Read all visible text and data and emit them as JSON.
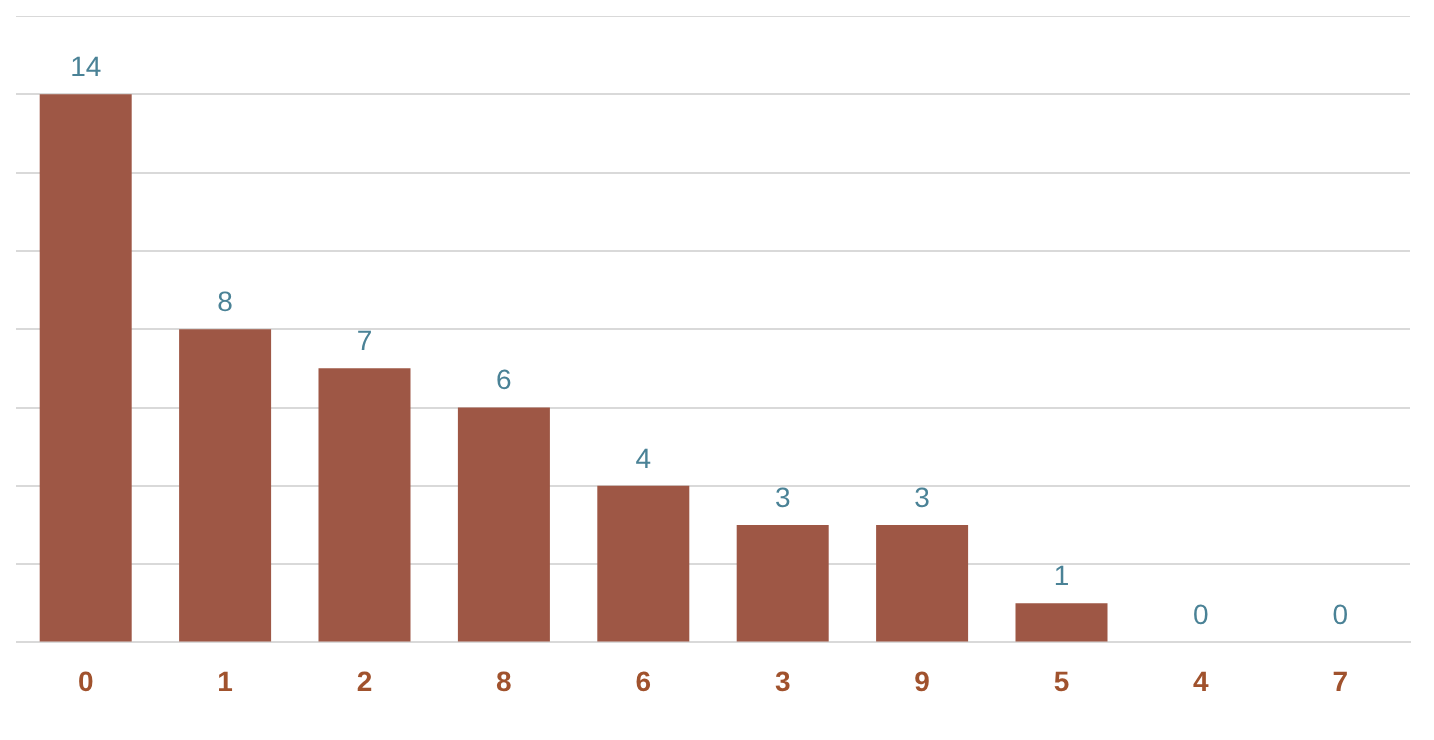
{
  "chart_data": {
    "type": "bar",
    "categories": [
      "0",
      "1",
      "2",
      "8",
      "6",
      "3",
      "9",
      "5",
      "4",
      "7"
    ],
    "values": [
      14,
      8,
      7,
      6,
      4,
      3,
      3,
      1,
      0,
      0
    ],
    "color": "#9e5745",
    "ylim": [
      0,
      16
    ],
    "yticks": [
      {
        "value": 0,
        "label": null
      },
      {
        "value": 2,
        "label": null
      },
      {
        "value": 4,
        "label": null
      },
      {
        "value": 6,
        "label": null
      },
      {
        "value": 8,
        "label": null
      },
      {
        "value": 10,
        "label": null
      },
      {
        "value": 12,
        "label": null
      },
      {
        "value": 14,
        "label": null
      },
      {
        "value": 16,
        "label": null
      }
    ],
    "grid": "y",
    "tick_labels": "x",
    "data_labels": true,
    "legend": false
  }
}
